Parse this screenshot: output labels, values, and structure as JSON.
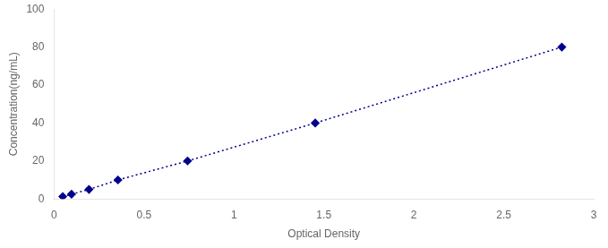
{
  "chart_data": {
    "type": "line",
    "x": [
      0.048,
      0.097,
      0.194,
      0.355,
      0.742,
      1.452,
      2.823
    ],
    "values": [
      1.25,
      2.5,
      5.0,
      10.0,
      20.0,
      40.0,
      80.0
    ],
    "color": "#00008B",
    "marker": "diamond",
    "line_style": "dotted",
    "xlabel": "Optical Density",
    "ylabel": "Concentration(ng/mL)",
    "xlim": [
      0,
      3.0
    ],
    "ylim": [
      0,
      100
    ],
    "xticks": [
      0,
      0.5,
      1,
      1.5,
      2,
      2.5,
      3
    ],
    "yticks": [
      0,
      20,
      40,
      60,
      80,
      100
    ],
    "grid": false
  }
}
